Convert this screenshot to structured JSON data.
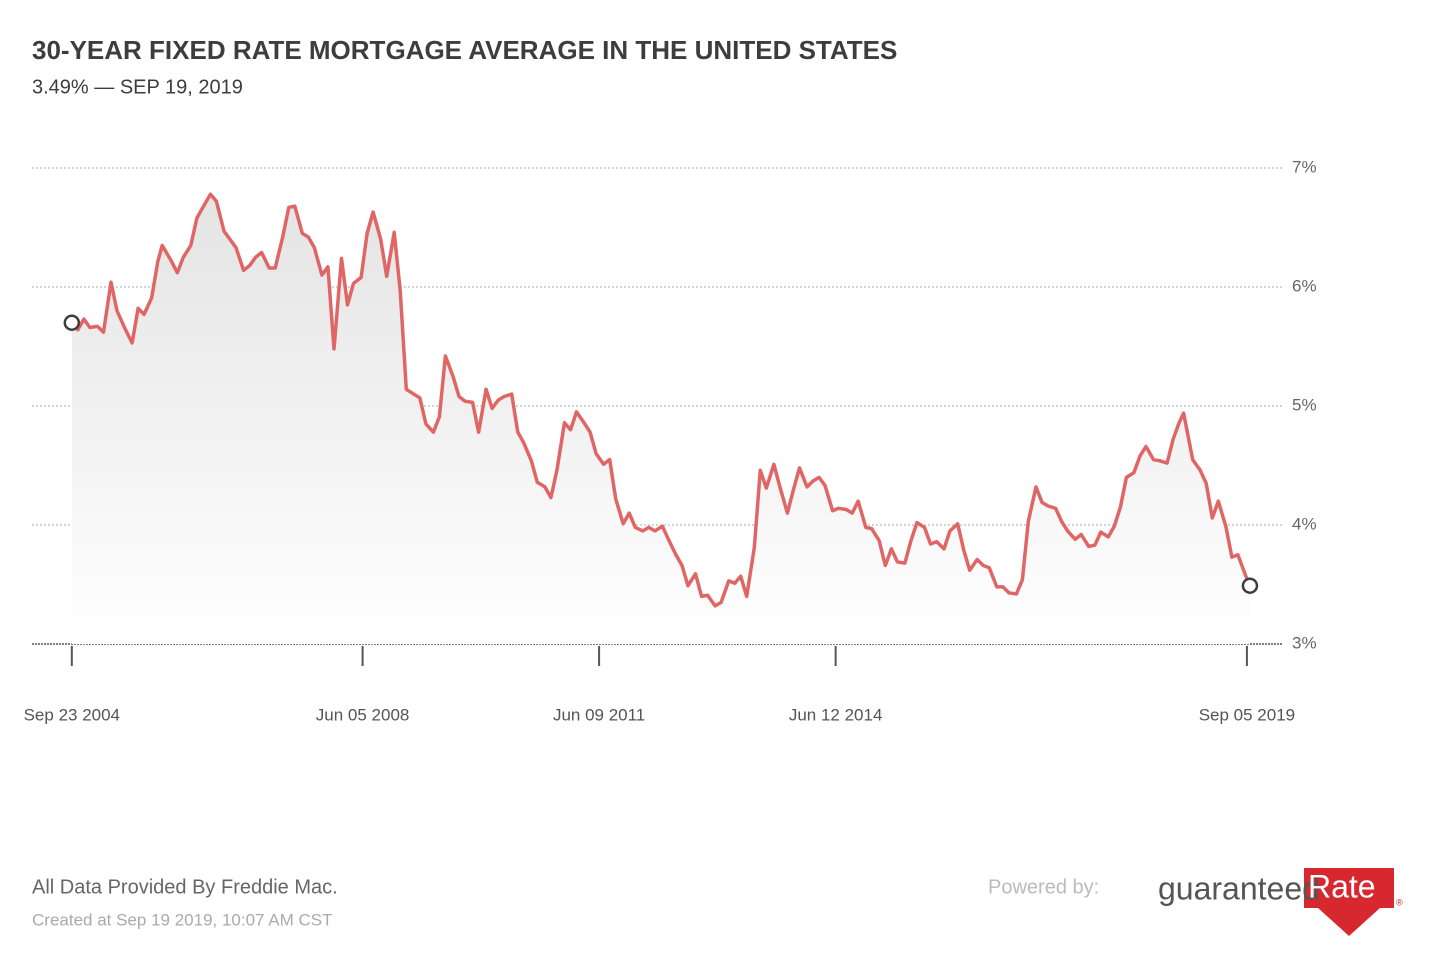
{
  "chart_data": {
    "type": "line",
    "title": "30-YEAR FIXED RATE MORTGAGE AVERAGE IN THE UNITED STATES",
    "subtitle": "3.49% — SEP 19, 2019",
    "x": [
      "2004-09-23",
      "2004-10-21",
      "2004-11-18",
      "2004-12-16",
      "2005-01-20",
      "2005-02-17",
      "2005-03-24",
      "2005-04-21",
      "2005-05-26",
      "2005-06-30",
      "2005-07-28",
      "2005-08-25",
      "2005-09-29",
      "2005-10-27",
      "2005-11-17",
      "2005-12-29",
      "2006-01-26",
      "2006-02-23",
      "2006-03-30",
      "2006-04-27",
      "2006-05-25",
      "2006-06-29",
      "2006-07-27",
      "2006-08-31",
      "2006-09-28",
      "2006-10-26",
      "2006-11-30",
      "2006-12-28",
      "2007-01-25",
      "2007-02-22",
      "2007-03-29",
      "2007-04-26",
      "2007-05-31",
      "2007-06-28",
      "2007-07-26",
      "2007-08-30",
      "2007-09-27",
      "2007-10-25",
      "2007-11-29",
      "2007-12-27",
      "2008-01-24",
      "2008-02-28",
      "2008-03-27",
      "2008-04-24",
      "2008-05-29",
      "2008-06-26",
      "2008-07-24",
      "2008-08-28",
      "2008-09-25",
      "2008-10-30",
      "2008-11-27",
      "2008-12-25",
      "2009-01-29",
      "2009-02-26",
      "2009-03-26",
      "2009-04-30",
      "2009-05-28",
      "2009-06-25",
      "2009-07-30",
      "2009-08-27",
      "2009-09-24",
      "2009-10-29",
      "2009-11-26",
      "2009-12-31",
      "2010-01-28",
      "2010-02-25",
      "2010-03-25",
      "2010-04-29",
      "2010-05-27",
      "2010-06-24",
      "2010-07-29",
      "2010-08-26",
      "2010-09-30",
      "2010-10-28",
      "2010-11-25",
      "2010-12-30",
      "2011-01-27",
      "2011-02-24",
      "2011-03-31",
      "2011-04-28",
      "2011-05-26",
      "2011-06-30",
      "2011-07-28",
      "2011-08-25",
      "2011-09-29",
      "2011-10-27",
      "2011-11-24",
      "2011-12-29",
      "2012-01-26",
      "2012-02-23",
      "2012-03-29",
      "2012-04-26",
      "2012-05-31",
      "2012-06-28",
      "2012-07-26",
      "2012-08-30",
      "2012-09-27",
      "2012-10-25",
      "2012-11-29",
      "2012-12-27",
      "2013-01-31",
      "2013-02-28",
      "2013-03-28",
      "2013-04-25",
      "2013-05-30",
      "2013-06-27",
      "2013-07-25",
      "2013-08-29",
      "2013-09-26",
      "2013-10-31",
      "2013-11-27",
      "2013-12-26",
      "2014-01-30",
      "2014-02-27",
      "2014-03-27",
      "2014-04-24",
      "2014-05-29",
      "2014-06-26",
      "2014-07-31",
      "2014-08-28",
      "2014-09-25",
      "2014-10-30",
      "2014-11-26",
      "2014-12-31",
      "2015-01-29",
      "2015-02-26",
      "2015-03-26",
      "2015-04-30",
      "2015-05-28",
      "2015-06-25",
      "2015-07-30",
      "2015-08-27",
      "2015-09-24",
      "2015-10-29",
      "2015-11-25",
      "2015-12-31",
      "2016-01-28",
      "2016-02-25",
      "2016-03-31",
      "2016-04-28",
      "2016-05-26",
      "2016-06-30",
      "2016-07-28",
      "2016-08-25",
      "2016-09-29",
      "2016-10-27",
      "2016-11-23",
      "2016-12-29",
      "2017-01-26",
      "2017-02-23",
      "2017-03-30",
      "2017-04-27",
      "2017-05-25",
      "2017-06-29",
      "2017-07-27",
      "2017-08-31",
      "2017-09-28",
      "2017-10-26",
      "2017-11-30",
      "2017-12-28",
      "2018-01-25",
      "2018-02-22",
      "2018-03-29",
      "2018-04-26",
      "2018-05-24",
      "2018-06-28",
      "2018-07-26",
      "2018-08-30",
      "2018-09-27",
      "2018-10-25",
      "2018-11-15",
      "2018-12-27",
      "2019-01-31",
      "2019-02-28",
      "2019-03-28",
      "2019-04-25",
      "2019-05-30",
      "2019-06-27",
      "2019-07-25",
      "2019-08-29",
      "2019-09-19"
    ],
    "series": [
      {
        "name": "30-Year Fixed",
        "color": "#e06666",
        "values": [
          5.7,
          5.64,
          5.73,
          5.66,
          5.67,
          5.62,
          6.04,
          5.8,
          5.66,
          5.53,
          5.82,
          5.77,
          5.91,
          6.21,
          6.35,
          6.22,
          6.12,
          6.25,
          6.35,
          6.58,
          6.67,
          6.78,
          6.72,
          6.47,
          6.4,
          6.33,
          6.14,
          6.18,
          6.25,
          6.29,
          6.16,
          6.16,
          6.42,
          6.67,
          6.68,
          6.45,
          6.42,
          6.33,
          6.1,
          6.17,
          5.48,
          6.24,
          5.85,
          6.03,
          6.08,
          6.45,
          6.63,
          6.4,
          6.09,
          6.46,
          5.97,
          5.14,
          5.1,
          5.07,
          4.85,
          4.78,
          4.91,
          5.42,
          5.25,
          5.08,
          5.04,
          5.03,
          4.78,
          5.14,
          4.98,
          5.05,
          5.08,
          5.1,
          4.78,
          4.69,
          4.54,
          4.36,
          4.32,
          4.23,
          4.46,
          4.86,
          4.8,
          4.95,
          4.86,
          4.78,
          4.6,
          4.51,
          4.55,
          4.22,
          4.01,
          4.1,
          3.98,
          3.95,
          3.98,
          3.95,
          3.99,
          3.88,
          3.75,
          3.66,
          3.49,
          3.59,
          3.4,
          3.41,
          3.32,
          3.35,
          3.53,
          3.51,
          3.57,
          3.4,
          3.81,
          4.46,
          4.31,
          4.51,
          4.32,
          4.1,
          4.29,
          4.48,
          4.32,
          4.37,
          4.4,
          4.33,
          4.12,
          4.14,
          4.13,
          4.1,
          4.2,
          3.98,
          3.97,
          3.87,
          3.66,
          3.8,
          3.69,
          3.68,
          3.87,
          4.02,
          3.98,
          3.84,
          3.86,
          3.8,
          3.95,
          4.01,
          3.79,
          3.62,
          3.71,
          3.66,
          3.64,
          3.48,
          3.48,
          3.43,
          3.42,
          3.54,
          4.03,
          4.32,
          4.19,
          4.16,
          4.14,
          4.03,
          3.95,
          3.88,
          3.92,
          3.82,
          3.83,
          3.94,
          3.9,
          3.99,
          4.15,
          4.4,
          4.44,
          4.58,
          4.66,
          4.55,
          4.54,
          4.52,
          4.72,
          4.86,
          4.94,
          4.55,
          4.46,
          4.35,
          4.06,
          4.2,
          3.99,
          3.73,
          3.75,
          3.58,
          3.49
        ]
      }
    ],
    "xlim": [
      "2004-03-22",
      "2020-02-15"
    ],
    "xticks": [
      {
        "value": "2004-09-23",
        "label": "Sep 23 2004"
      },
      {
        "value": "2008-06-05",
        "label": "Jun 05 2008"
      },
      {
        "value": "2011-06-09",
        "label": "Jun 09 2011"
      },
      {
        "value": "2014-06-12",
        "label": "Jun 12 2014"
      },
      {
        "value": "2019-09-05",
        "label": "Sep 05 2019"
      }
    ],
    "ylim": [
      3,
      7
    ],
    "yticks": [
      {
        "value": 3,
        "label": "3%"
      },
      {
        "value": 4,
        "label": "4%"
      },
      {
        "value": 5,
        "label": "5%"
      },
      {
        "value": 6,
        "label": "6%"
      },
      {
        "value": 7,
        "label": "7%"
      }
    ],
    "grid": true
  },
  "footer": {
    "source": "All Data Provided By Freddie Mac.",
    "created": "Created at Sep 19 2019, 10:07 AM CST",
    "powered": "Powered by:",
    "logo_left": "guaranteed",
    "logo_right": "Rate",
    "logo_mark": "®"
  }
}
